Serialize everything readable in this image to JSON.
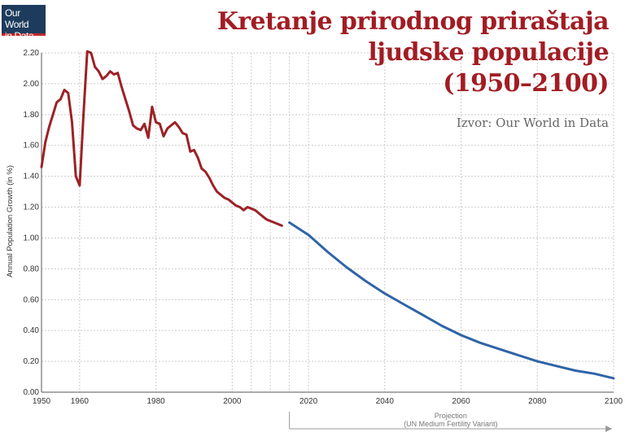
{
  "logo": {
    "line1": "Our World",
    "line2": "in Data"
  },
  "title": {
    "line1": "Kretanje prirodnog priraštaja",
    "line2": "ljudske  populacije",
    "line3": "(1950–2100)"
  },
  "source": "Izvor: Our World in Data",
  "colors": {
    "historical": "#9b2226",
    "projection": "#2f64a8",
    "title": "#a21c23",
    "grid": "#cccccc"
  },
  "chart_data": {
    "type": "line",
    "ylabel": "Annual Population Growth (in %)",
    "xlim": [
      1950,
      2100
    ],
    "ylim": [
      0,
      2.2
    ],
    "x_ticks": [
      1950,
      1960,
      1980,
      2000,
      2020,
      2040,
      2060,
      2080,
      2100
    ],
    "x_tick_labels": [
      "1950",
      "1960",
      "1980",
      "2000",
      "2020",
      "2040",
      "2060",
      "2080",
      "2100"
    ],
    "y_ticks": [
      0,
      0.2,
      0.4,
      0.6,
      0.8,
      1.0,
      1.2,
      1.4,
      1.6,
      1.8,
      2.0,
      2.2
    ],
    "y_tick_labels": [
      "0.00",
      "0.20",
      "0.40",
      "0.60",
      "0.80",
      "1.00",
      "1.20",
      "1.40",
      "1.60",
      "1.80",
      "2.00",
      "2.20"
    ],
    "x_minor_grid": [
      2005,
      2010,
      2015
    ],
    "grid": true,
    "series": [
      {
        "type": "historical",
        "x": [
          1950,
          1951,
          1952,
          1953,
          1954,
          1955,
          1956,
          1957,
          1958,
          1959,
          1960,
          1961,
          1962,
          1963,
          1964,
          1965,
          1966,
          1967,
          1968,
          1969,
          1970,
          1971,
          1972,
          1973,
          1974,
          1975,
          1976,
          1977,
          1978,
          1979,
          1980,
          1981,
          1982,
          1983,
          1984,
          1985,
          1986,
          1987,
          1988,
          1989,
          1990,
          1991,
          1992,
          1993,
          1994,
          1995,
          1996,
          1997,
          1998,
          1999,
          2000,
          2001,
          2002,
          2003,
          2004,
          2005,
          2006,
          2007,
          2008,
          2009,
          2010,
          2011,
          2012,
          2013
        ],
        "values": [
          1.46,
          1.62,
          1.72,
          1.8,
          1.88,
          1.9,
          1.96,
          1.94,
          1.75,
          1.4,
          1.34,
          1.8,
          2.21,
          2.2,
          2.11,
          2.08,
          2.03,
          2.05,
          2.08,
          2.06,
          2.07,
          1.98,
          1.9,
          1.82,
          1.73,
          1.71,
          1.7,
          1.74,
          1.65,
          1.85,
          1.75,
          1.74,
          1.66,
          1.71,
          1.73,
          1.75,
          1.72,
          1.68,
          1.67,
          1.56,
          1.57,
          1.52,
          1.45,
          1.43,
          1.39,
          1.34,
          1.3,
          1.28,
          1.26,
          1.25,
          1.23,
          1.21,
          1.2,
          1.18,
          1.2,
          1.19,
          1.18,
          1.16,
          1.14,
          1.12,
          1.11,
          1.1,
          1.09,
          1.08
        ]
      },
      {
        "type": "projection",
        "x": [
          2015,
          2020,
          2025,
          2030,
          2035,
          2040,
          2045,
          2050,
          2055,
          2060,
          2065,
          2070,
          2075,
          2080,
          2085,
          2090,
          2095,
          2100
        ],
        "values": [
          1.1,
          1.02,
          0.91,
          0.81,
          0.72,
          0.64,
          0.57,
          0.5,
          0.43,
          0.37,
          0.32,
          0.28,
          0.24,
          0.2,
          0.17,
          0.14,
          0.12,
          0.09
        ]
      }
    ],
    "annotation": {
      "line1": "Projection",
      "line2": "(UN Medium Fertility Variant)",
      "x_start": 2015,
      "x_end": 2100
    }
  }
}
